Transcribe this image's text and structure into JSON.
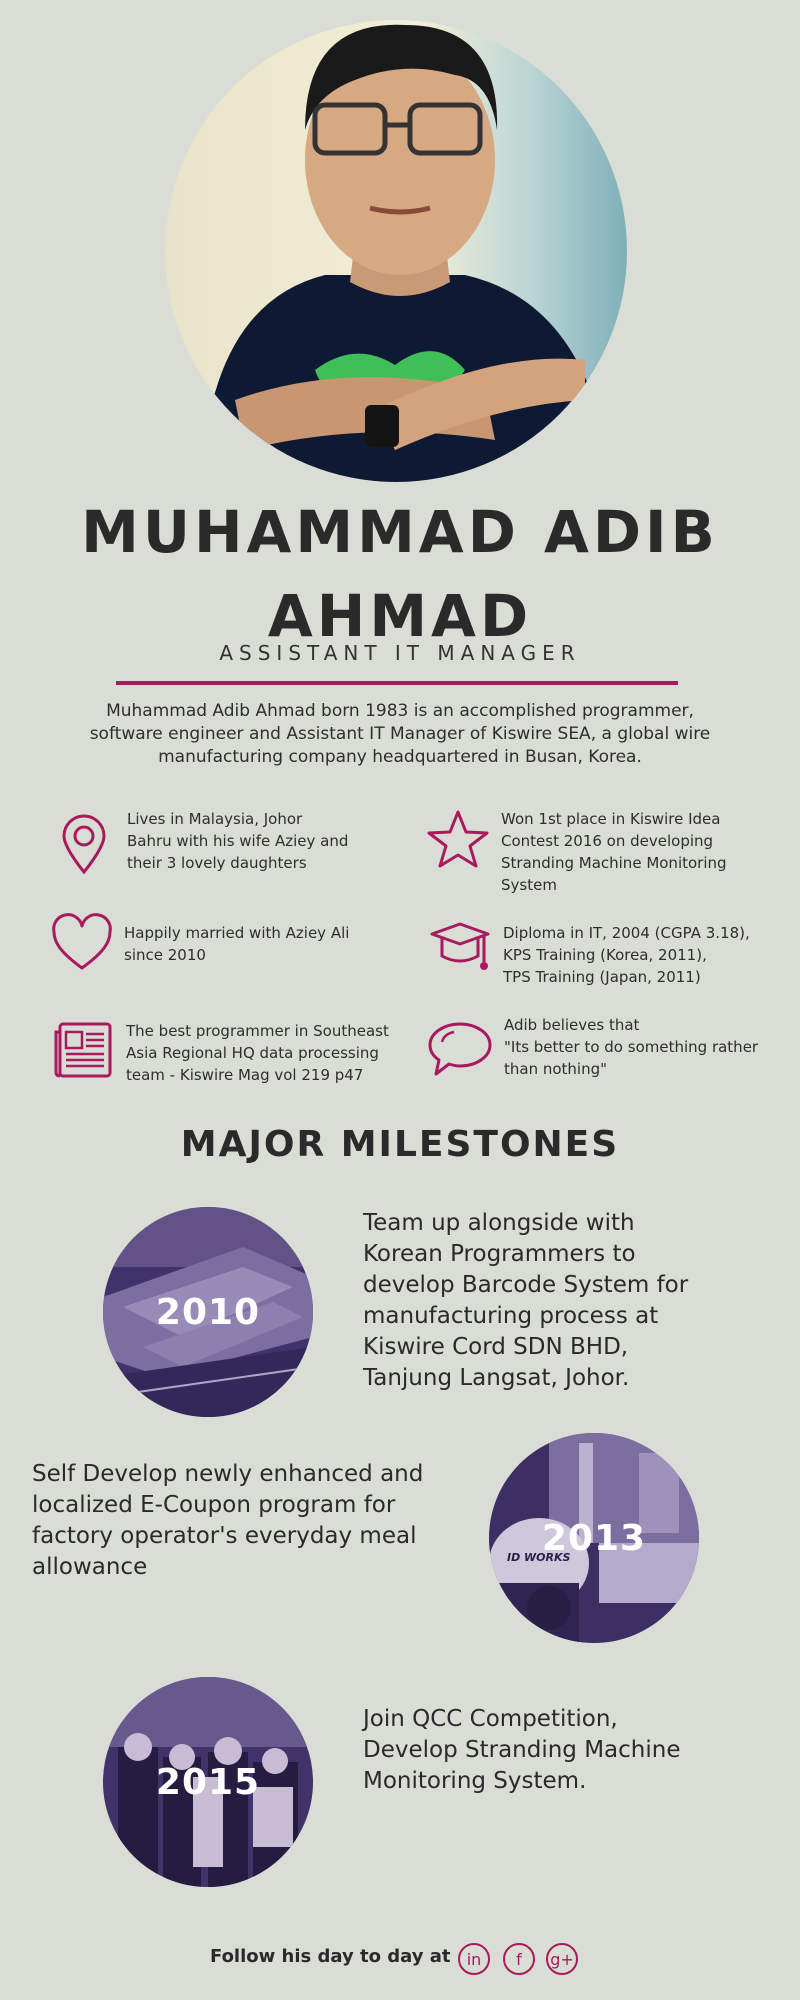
{
  "profile": {
    "name_line1": "MUHAMMAD ADIB",
    "name_line2": "AHMAD",
    "role": "ASSISTANT IT MANAGER",
    "intro": "Muhammad Adib Ahmad born 1983 is an accomplished programmer, software engineer and Assistant IT Manager of Kiswire SEA, a global wire manufacturing company headquartered in Busan, Korea."
  },
  "facts": [
    {
      "icon": "location-pin-icon",
      "lines": [
        "Lives in Malaysia, Johor",
        "Bahru with his wife Aziey and",
        "their 3 lovely daughters"
      ]
    },
    {
      "icon": "star-icon",
      "lines": [
        "Won 1st place in Kiswire Idea",
        "Contest 2016 on developing",
        "Stranding Machine Monitoring",
        "System"
      ]
    },
    {
      "icon": "heart-icon",
      "lines": [
        "Happily married with Aziey Ali",
        "since 2010"
      ]
    },
    {
      "icon": "graduation-cap-icon",
      "lines": [
        "Diploma in IT, 2004 (CGPA 3.18),",
        "KPS Training (Korea, 2011),",
        "TPS Training (Japan, 2011)"
      ]
    },
    {
      "icon": "newspaper-icon",
      "lines": [
        "The best programmer in Southeast",
        "Asia Regional HQ data processing",
        "team - Kiswire Mag vol 219 p47"
      ]
    },
    {
      "icon": "speech-bubble-icon",
      "lines": [
        "Adib believes that",
        "\"Its better to do something rather",
        "than nothing\""
      ]
    }
  ],
  "milestones_title": "MAJOR MILESTONES",
  "milestones": [
    {
      "year": "2010",
      "lines": [
        "Team up alongside with",
        "Korean Programmers to",
        "develop Barcode System for",
        "manufacturing process at",
        "Kiswire Cord SDN BHD,",
        "Tanjung Langsat, Johor."
      ]
    },
    {
      "year": "2013",
      "lines": [
        "Self Develop newly enhanced and",
        "localized E-Coupon program for",
        "factory operator's everyday meal",
        "allowance"
      ],
      "sign_text": "ID WORKS"
    },
    {
      "year": "2015",
      "lines": [
        "Join QCC Competition,",
        "Develop Stranding Machine",
        "Monitoring System."
      ]
    }
  ],
  "footer": {
    "follow_label": "Follow his day to day at",
    "social": [
      {
        "icon": "linkedin-icon",
        "glyph": "in"
      },
      {
        "icon": "facebook-icon",
        "glyph": "f"
      },
      {
        "icon": "google-plus-icon",
        "glyph": "g+"
      }
    ]
  },
  "colors": {
    "background": "#d9ddd5",
    "accent": "#a8195e",
    "text": "#2a2a2a",
    "milestone_tint": "#4a3a78"
  }
}
